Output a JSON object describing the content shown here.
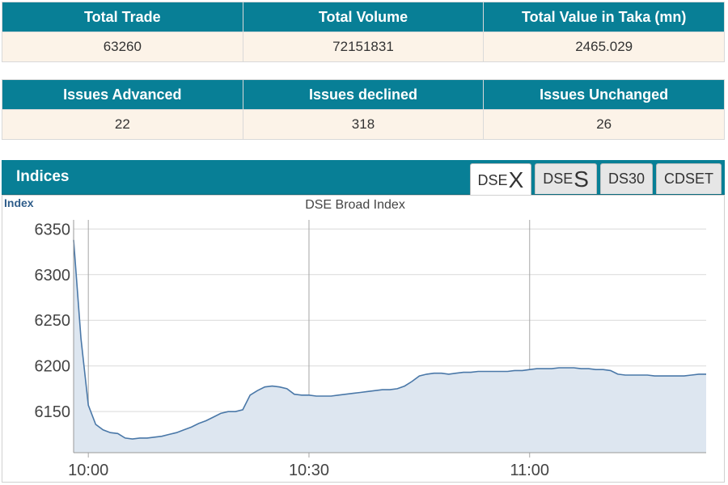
{
  "summary": {
    "headers": [
      "Total Trade",
      "Total Volume",
      "Total Value in Taka (mn)"
    ],
    "values": [
      "63260",
      "72151831",
      "2465.029"
    ]
  },
  "issues": {
    "headers": [
      "Issues Advanced",
      "Issues declined",
      "Issues Unchanged"
    ],
    "values": [
      "22",
      "318",
      "26"
    ]
  },
  "indices": {
    "title": "Indices",
    "tabs": [
      {
        "prefix": "DSE",
        "suffix": "X",
        "active": true
      },
      {
        "prefix": "DSE",
        "suffix": "S",
        "active": false
      },
      {
        "prefix": "DS30",
        "suffix": "",
        "active": false
      },
      {
        "prefix": "CDSET",
        "suffix": "",
        "active": false
      }
    ]
  },
  "colors": {
    "header_bg": "#087f96",
    "row_bg": "#fcf3e8",
    "line": "#4a78a8",
    "fill": "#dde6f0"
  },
  "chart_data": {
    "type": "area",
    "title": "DSE Broad Index",
    "ylabel": "Index",
    "xlabel": "",
    "xlim": [
      "09:58",
      "11:24"
    ],
    "ylim": [
      6105,
      6360
    ],
    "yticks": [
      6150,
      6200,
      6250,
      6300,
      6350
    ],
    "xticks": [
      "10:00",
      "10:30",
      "11:00"
    ],
    "grid": true,
    "series": [
      {
        "x": [
          "09:58",
          "09:59",
          "10:00",
          "10:01",
          "10:02",
          "10:03",
          "10:04",
          "10:05",
          "10:06",
          "10:07",
          "10:08",
          "10:09",
          "10:10",
          "10:11",
          "10:12",
          "10:13",
          "10:14",
          "10:15",
          "10:16",
          "10:17",
          "10:18",
          "10:19",
          "10:20",
          "10:21",
          "10:22",
          "10:23",
          "10:24",
          "10:25",
          "10:26",
          "10:27",
          "10:28",
          "10:29",
          "10:30",
          "10:31",
          "10:32",
          "10:33",
          "10:34",
          "10:35",
          "10:36",
          "10:37",
          "10:38",
          "10:39",
          "10:40",
          "10:41",
          "10:42",
          "10:43",
          "10:44",
          "10:45",
          "10:46",
          "10:47",
          "10:48",
          "10:49",
          "10:50",
          "10:51",
          "10:52",
          "10:53",
          "10:54",
          "10:55",
          "10:56",
          "10:57",
          "10:58",
          "10:59",
          "11:00",
          "11:01",
          "11:02",
          "11:03",
          "11:04",
          "11:05",
          "11:06",
          "11:07",
          "11:08",
          "11:09",
          "11:10",
          "11:11",
          "11:12",
          "11:13",
          "11:14",
          "11:15",
          "11:16",
          "11:17",
          "11:18",
          "11:19",
          "11:20",
          "11:21",
          "11:22",
          "11:23",
          "11:24"
        ],
        "values": [
          6338,
          6230,
          6157,
          6136,
          6130,
          6127,
          6126,
          6121,
          6120,
          6121,
          6121,
          6122,
          6123,
          6125,
          6127,
          6130,
          6133,
          6137,
          6140,
          6144,
          6148,
          6150,
          6150,
          6152,
          6168,
          6173,
          6177,
          6178,
          6177,
          6175,
          6169,
          6168,
          6168,
          6167,
          6167,
          6167,
          6168,
          6169,
          6170,
          6171,
          6172,
          6173,
          6174,
          6174,
          6175,
          6178,
          6183,
          6189,
          6191,
          6192,
          6192,
          6191,
          6192,
          6193,
          6193,
          6194,
          6194,
          6194,
          6194,
          6194,
          6195,
          6195,
          6196,
          6197,
          6197,
          6197,
          6198,
          6198,
          6198,
          6197,
          6197,
          6196,
          6196,
          6195,
          6191,
          6190,
          6190,
          6190,
          6190,
          6189,
          6189,
          6189,
          6189,
          6189,
          6190,
          6191,
          6191
        ]
      }
    ]
  }
}
